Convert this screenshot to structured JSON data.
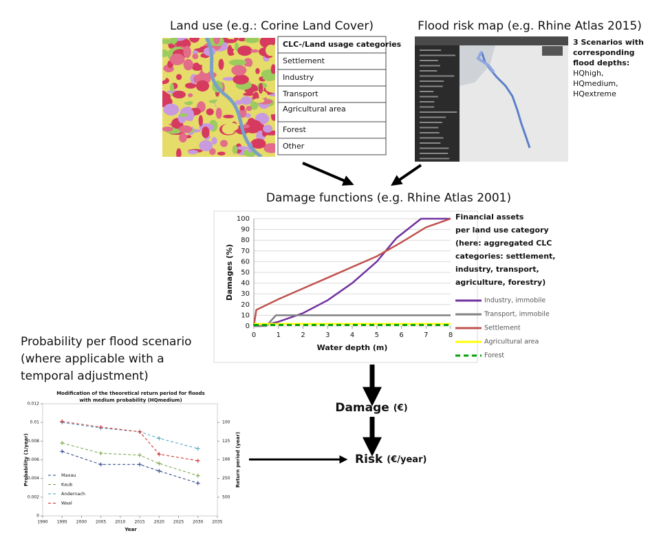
{
  "land_use": {
    "title": "Land use (e.g.: Corine Land Cover)",
    "table": {
      "header": "CLC-/Land usage categories",
      "rows": [
        "Settlement",
        "Industry",
        "Transport",
        "Agricultural area",
        "Forest",
        "Other"
      ]
    }
  },
  "flood_map": {
    "title": "Flood risk map (e.g. Rhine Atlas 2015)",
    "note": {
      "heading": [
        "3 Scenarios with",
        "corresponding",
        "flood depths:"
      ],
      "items": [
        "HQhigh,",
        "HQmedium,",
        "HQextreme"
      ]
    }
  },
  "damage_functions": {
    "title": "Damage functions (e.g. Rhine Atlas 2001)",
    "chart": {
      "type": "line",
      "xlabel": "Water depth (m)",
      "ylabel": "Damages (%)",
      "xlim": [
        0,
        8
      ],
      "xticks": [
        0,
        1,
        2,
        3,
        4,
        5,
        6,
        7,
        8
      ],
      "ylim": [
        0,
        100
      ],
      "yticks": [
        0,
        10,
        20,
        30,
        40,
        50,
        60,
        70,
        80,
        90,
        100
      ],
      "grid": true,
      "legend_title": [
        "Financial assets",
        "per land use category",
        "(here: aggregated CLC",
        "categories: settlement,",
        "industry, transport,",
        "agriculture, forestry)"
      ],
      "series": [
        {
          "name": "Industry, immobile",
          "color": "#7030a0",
          "x": [
            0,
            0.3,
            1,
            2,
            3,
            4,
            5,
            5.8,
            6.8,
            8
          ],
          "values": [
            0,
            0,
            4,
            12,
            24,
            40,
            60,
            82,
            100,
            100
          ]
        },
        {
          "name": "Transport, immobile",
          "color": "#808080",
          "x": [
            0,
            0.5,
            0.9,
            8
          ],
          "values": [
            0,
            0,
            10,
            10
          ]
        },
        {
          "name": "Settlement",
          "color": "#c0504d",
          "x": [
            0,
            0.1,
            1,
            2,
            3,
            4,
            5,
            6,
            7,
            8
          ],
          "values": [
            0,
            15,
            25,
            35,
            45,
            55,
            65,
            78,
            92,
            100
          ]
        },
        {
          "name": "Agricultural area",
          "color": "#ffff00",
          "x": [
            0,
            8
          ],
          "values": [
            2,
            2
          ]
        },
        {
          "name": "Forest",
          "color": "#00a000",
          "dashed": true,
          "x": [
            0,
            8
          ],
          "values": [
            1,
            1
          ]
        }
      ]
    }
  },
  "probability": {
    "title": [
      "Probability per flood scenario",
      "(where applicable with a",
      "temporal adjustment)"
    ],
    "chart": {
      "type": "line",
      "title": [
        "Modification of the theoretical return period for floods",
        "with medium probability (HQmedium)"
      ],
      "xlabel": "Year",
      "ylabel": "Probability (1/year)",
      "y2label": "Return period (year)",
      "xlim": [
        1990,
        2035
      ],
      "xticks": [
        1990,
        1995,
        2000,
        2005,
        2010,
        2015,
        2020,
        2025,
        2030,
        2035
      ],
      "ylim": [
        0,
        0.012
      ],
      "yticks": [
        0,
        0.002,
        0.004,
        0.006,
        0.008,
        0.01,
        0.012
      ],
      "y2scale": "reciprocal",
      "y2ticks": [
        100,
        125,
        166,
        250,
        500
      ],
      "x": [
        1995,
        2005,
        2015,
        2020,
        2030
      ],
      "series": [
        {
          "name": "Maxau",
          "color": "#1f3a80",
          "values": [
            0.0069,
            0.0055,
            0.0055,
            0.0048,
            0.0035
          ]
        },
        {
          "name": "Kaub",
          "color": "#70a040",
          "values": [
            0.0078,
            0.0067,
            0.0065,
            0.0056,
            0.0043
          ]
        },
        {
          "name": "Andernach",
          "color": "#40a0c0",
          "values": [
            0.01,
            0.0094,
            0.009,
            0.0083,
            0.0072
          ]
        },
        {
          "name": "Waal",
          "color": "#d02020",
          "values": [
            0.0101,
            0.0095,
            0.009,
            0.0066,
            0.0059
          ]
        }
      ]
    }
  },
  "damage": {
    "label": "Damage",
    "unit": "(€)"
  },
  "risk": {
    "label": "Risk",
    "unit": "(€/year)"
  }
}
